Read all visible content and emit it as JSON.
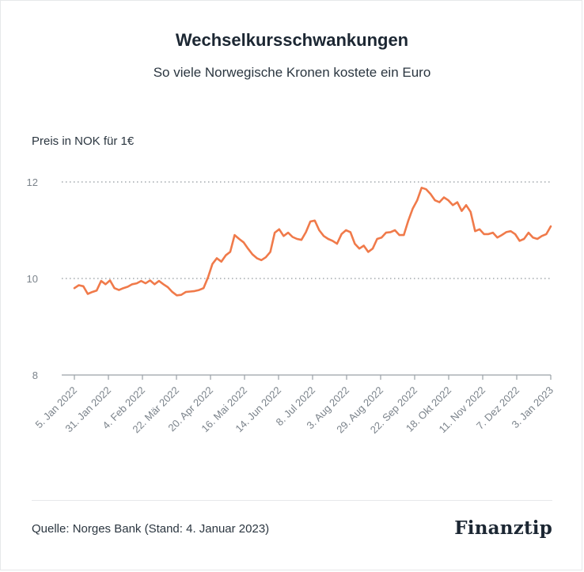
{
  "chart_data": {
    "type": "line",
    "title": "Wechselkursschwankungen",
    "subtitle": "So viele Norwegische Kronen kostete ein Euro",
    "ylabel": "Preis in NOK für 1€",
    "ylim": [
      8,
      12
    ],
    "yticks": [
      8,
      10,
      12
    ],
    "grid": true,
    "x_tick_labels": [
      "5. Jan 2022",
      "31. Jan 2022",
      "4. Feb 2022",
      "22. Mär 2022",
      "20. Apr 2022",
      "16. Mai 2022",
      "14. Jun 2022",
      "8. Jul 2022",
      "3. Aug 2022",
      "29. Aug 2022",
      "22. Sep 2022",
      "18. Okt 2022",
      "11. Nov 2022",
      "7. Dez 2022",
      "3. Jan 2023"
    ],
    "series": [
      {
        "color": "#f07a4a",
        "values": [
          9.8,
          9.86,
          9.84,
          9.68,
          9.72,
          9.75,
          9.95,
          9.88,
          9.96,
          9.8,
          9.76,
          9.8,
          9.83,
          9.88,
          9.9,
          9.95,
          9.9,
          9.96,
          9.88,
          9.95,
          9.88,
          9.82,
          9.72,
          9.65,
          9.66,
          9.72,
          9.73,
          9.74,
          9.76,
          9.8,
          10.02,
          10.3,
          10.42,
          10.35,
          10.48,
          10.55,
          10.9,
          10.82,
          10.75,
          10.62,
          10.5,
          10.42,
          10.38,
          10.44,
          10.55,
          10.95,
          11.02,
          10.88,
          10.95,
          10.86,
          10.82,
          10.8,
          10.96,
          11.18,
          11.2,
          11.0,
          10.88,
          10.82,
          10.78,
          10.72,
          10.92,
          11.0,
          10.96,
          10.72,
          10.62,
          10.68,
          10.55,
          10.62,
          10.82,
          10.85,
          10.95,
          10.96,
          11.0,
          10.9,
          10.9,
          11.2,
          11.45,
          11.62,
          11.88,
          11.85,
          11.75,
          11.62,
          11.58,
          11.68,
          11.62,
          11.52,
          11.58,
          11.4,
          11.52,
          11.38,
          10.98,
          11.02,
          10.92,
          10.92,
          10.95,
          10.85,
          10.9,
          10.96,
          10.98,
          10.92,
          10.78,
          10.82,
          10.95,
          10.85,
          10.82,
          10.88,
          10.92,
          11.08
        ]
      }
    ]
  },
  "footer": {
    "source": "Quelle: Norges Bank (Stand: 4. Januar 2023)",
    "brand": "Finanztip"
  }
}
